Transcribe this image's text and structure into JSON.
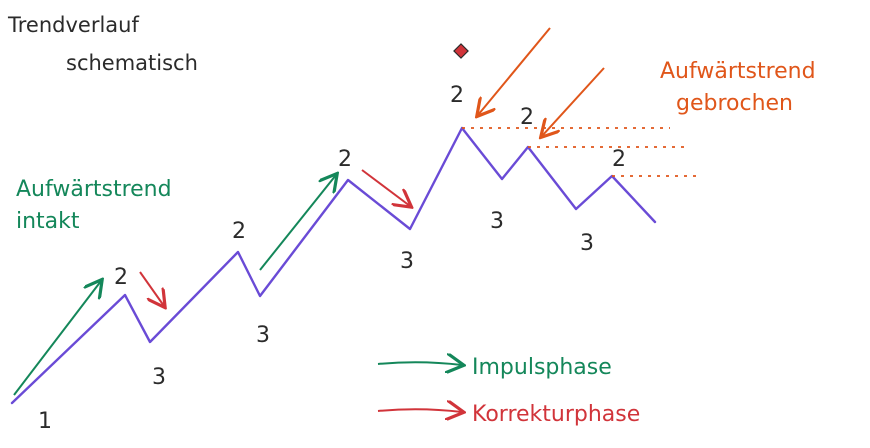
{
  "title": {
    "line1": "Trendverlauf",
    "line2": "schematisch"
  },
  "labels": {
    "intact_line1": "Aufwärtstrend",
    "intact_line2": "intakt",
    "broken_line1": "Aufwärtstrend",
    "broken_line2": "gebrochen"
  },
  "legend": {
    "impulse": "Impulsphase",
    "correction": "Korrekturphase"
  },
  "points": {
    "start": "1",
    "peak": "2",
    "trough": "3"
  },
  "colors": {
    "trend_line": "#6a4bd6",
    "impulse": "#14875a",
    "correction": "#d1343a",
    "break": "#e0561a",
    "marker": "#d1343a"
  }
}
